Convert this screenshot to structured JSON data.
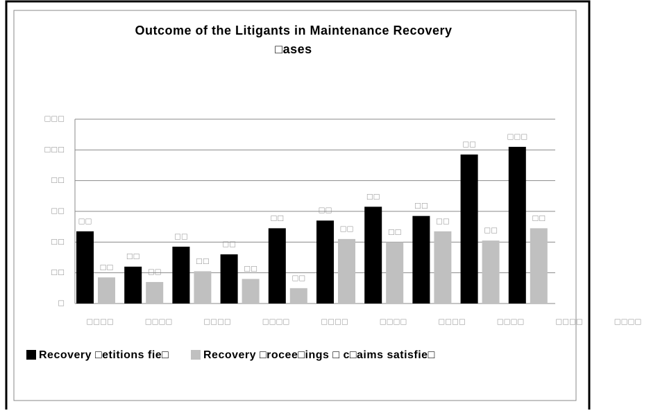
{
  "chart_data": {
    "type": "bar",
    "title": "Outcome of the Litigants in Maintenance Recovery",
    "subtitle": "□ases",
    "categories": [
      "□□□□",
      "□□□□",
      "□□□□",
      "□□□□",
      "□□□□",
      "□□□□",
      "□□□□",
      "□□□□",
      "□□□□",
      "□□□□"
    ],
    "series": [
      {
        "name": "Recovery □etitions fie□",
        "color": "#000000",
        "values": [
          47,
          24,
          37,
          32,
          49,
          54,
          63,
          57,
          97,
          102
        ],
        "value_labels": [
          "□□",
          "□□",
          "□□",
          "□□",
          "□□",
          "□□",
          "□□",
          "□□",
          "□□",
          "□□□"
        ]
      },
      {
        "name": "Recovery □rocee□ings □ c□aims satisfie□",
        "color": "#c0c0c0",
        "values": [
          17,
          14,
          21,
          16,
          10,
          42,
          40,
          47,
          41,
          49
        ],
        "value_labels": [
          "□□",
          "□□",
          "□□",
          "□□",
          "□□",
          "□□",
          "□□",
          "□□",
          "□□",
          "□□"
        ]
      }
    ],
    "ylim": [
      0,
      120
    ],
    "yticks": [
      {
        "value": 0,
        "label": "□"
      },
      {
        "value": 20,
        "label": "□□"
      },
      {
        "value": 40,
        "label": "□□"
      },
      {
        "value": 60,
        "label": "□□"
      },
      {
        "value": 80,
        "label": "□□"
      },
      {
        "value": 100,
        "label": "□□□"
      },
      {
        "value": 120,
        "label": "□□□"
      }
    ],
    "grid": true,
    "legend": "bottom"
  }
}
